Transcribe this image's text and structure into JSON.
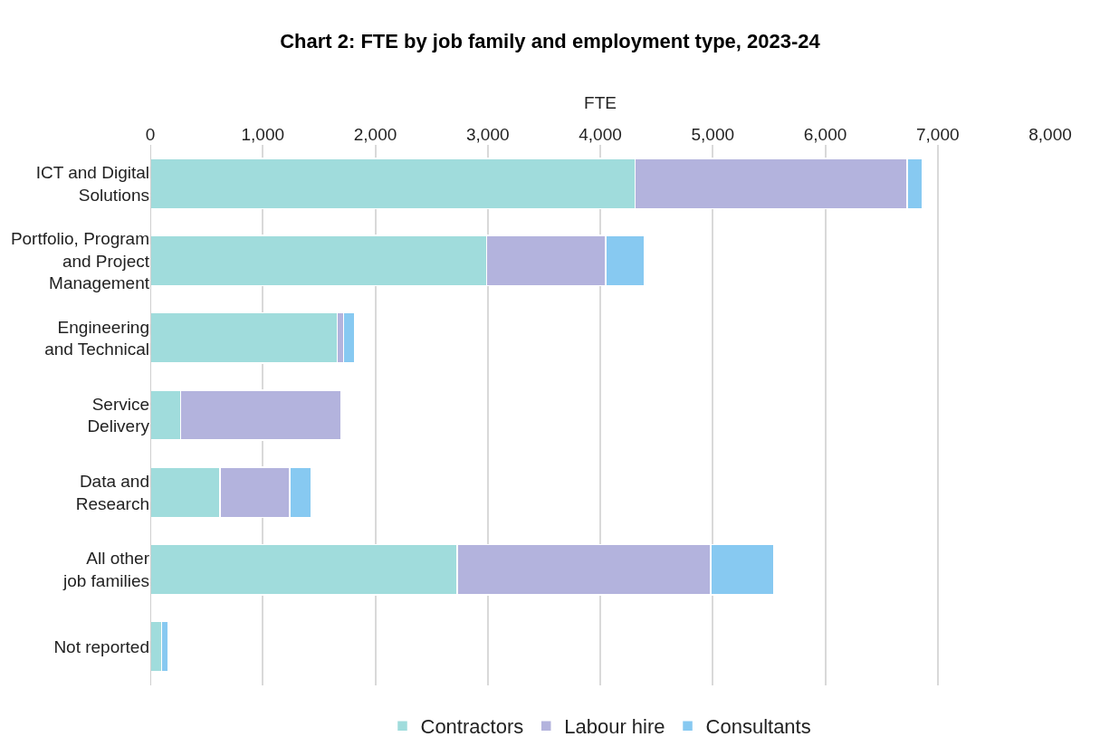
{
  "chart_data": {
    "type": "bar",
    "orientation": "horizontal",
    "stacked": true,
    "title": "Chart 2: FTE by job family and employment type, 2023-24",
    "xlabel": "FTE",
    "categories": [
      "ICT and Digital\nSolutions",
      "Portfolio, Program\nand Project\nManagement",
      "Engineering\nand Technical",
      "Service\nDelivery",
      "Data and\nResearch",
      "All other\njob families",
      "Not reported"
    ],
    "series": [
      {
        "name": "Contractors",
        "color": "#a0dcdc",
        "values": [
          4310,
          2990,
          1660,
          270,
          620,
          2730,
          100
        ]
      },
      {
        "name": "Labour hire",
        "color": "#b3b3dd",
        "values": [
          2420,
          1060,
          60,
          1430,
          620,
          2250,
          0
        ]
      },
      {
        "name": "Consultants",
        "color": "#87c9f1",
        "values": [
          130,
          340,
          100,
          10,
          190,
          560,
          60
        ]
      }
    ],
    "xlim": [
      0,
      8000
    ],
    "xticks": [
      {
        "value": 0,
        "label": "0"
      },
      {
        "value": 1000,
        "label": "1,000"
      },
      {
        "value": 2000,
        "label": "2,000"
      },
      {
        "value": 3000,
        "label": "3,000"
      },
      {
        "value": 4000,
        "label": "4,000"
      },
      {
        "value": 5000,
        "label": "5,000"
      },
      {
        "value": 6000,
        "label": "6,000"
      },
      {
        "value": 7000,
        "label": "7,000"
      },
      {
        "value": 8000,
        "label": "8,000"
      }
    ],
    "grid": "x",
    "legend": "bottom"
  }
}
